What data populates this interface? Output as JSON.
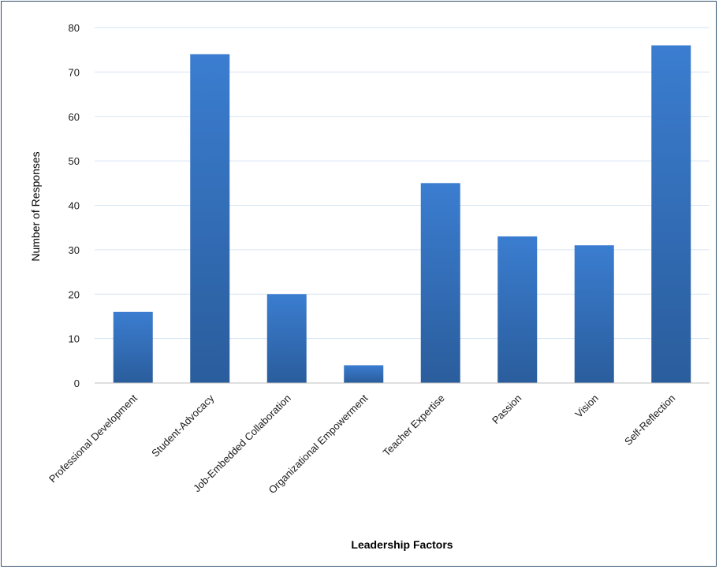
{
  "colors": {
    "bar_top": "#3b7dd0",
    "bar_bottom": "#2a5d9c",
    "grid": "#d6e4f3",
    "axis": "#bfbfbf",
    "frame": "#2f4f6f"
  },
  "chart_data": {
    "type": "bar",
    "title": "",
    "xlabel": "Leadership Factors",
    "ylabel": "Number of Responses",
    "ylim": [
      0,
      80
    ],
    "yticks": [
      0,
      10,
      20,
      30,
      40,
      50,
      60,
      70,
      80
    ],
    "grid": true,
    "categories": [
      "Professional  Development",
      "Student-Advocacy",
      "Job-Embedded Collaboration",
      "Organizational Empowerment",
      "Teacher Expertise",
      "Passion",
      "Vision",
      "Self-Reflection"
    ],
    "values": [
      16,
      74,
      20,
      4,
      45,
      33,
      31,
      76
    ]
  }
}
